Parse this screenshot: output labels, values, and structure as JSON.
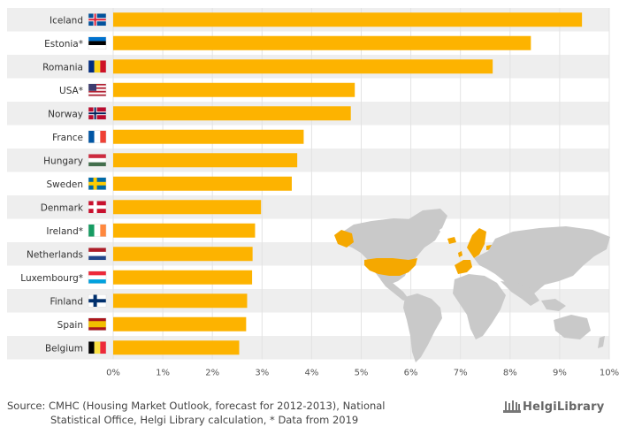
{
  "chart_data": {
    "type": "bar",
    "orientation": "horizontal",
    "categories": [
      "Iceland",
      "Estonia*",
      "Romania",
      "USA*",
      "Norway",
      "France",
      "Hungary",
      "Sweden",
      "Denmark",
      "Ireland*",
      "Netherlands",
      "Luxembourg*",
      "Finland",
      "Spain",
      "Belgium"
    ],
    "values": [
      9.45,
      8.42,
      7.65,
      4.87,
      4.79,
      3.84,
      3.71,
      3.6,
      2.98,
      2.86,
      2.81,
      2.8,
      2.7,
      2.68,
      2.54
    ],
    "flags": [
      "iceland",
      "estonia",
      "romania",
      "usa",
      "norway",
      "france",
      "hungary",
      "sweden",
      "denmark",
      "ireland",
      "netherlands",
      "luxembourg",
      "finland",
      "spain",
      "belgium"
    ],
    "xlim": [
      0,
      10
    ],
    "xticks": [
      "0%",
      "1%",
      "2%",
      "3%",
      "4%",
      "5%",
      "6%",
      "7%",
      "8%",
      "9%",
      "10%"
    ],
    "bar_color": "#FDB300",
    "stripe_color": "#EEEEEE",
    "grid": true,
    "highlight_color": "#F5A800",
    "map_color": "#C9C9C9"
  },
  "footer": {
    "source_line1": "Source: CMHC (Housing Market Outlook, forecast for 2012-2013), National",
    "source_line2": "Statistical Office, Helgi Library calculation, * Data from 2019",
    "logo": "HelgiLibrary"
  }
}
